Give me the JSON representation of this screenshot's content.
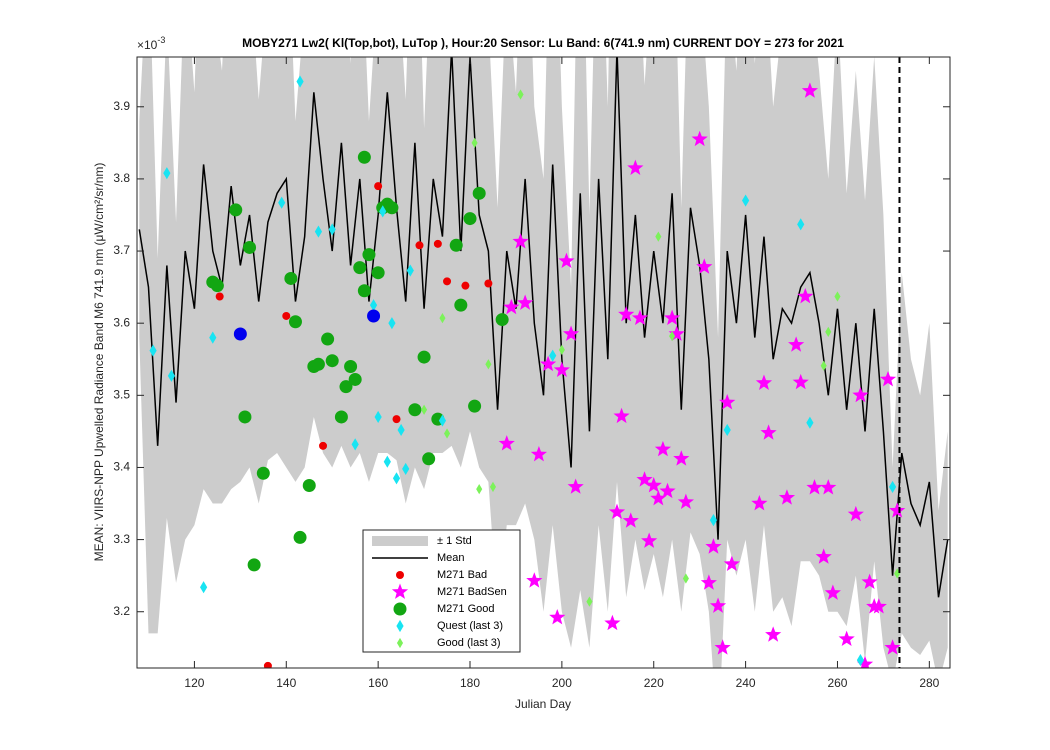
{
  "chart_data": {
    "type": "scatter",
    "title": "MOBY271   Lw2( Kl(Top,bot), LuTop ),   Hour:20 Sensor: Lu Band: 6(741.9 nm)   CURRENT DOY = 273 for 2021",
    "multiplier": {
      "base": "×10",
      "exponent": "-3"
    },
    "xlabel": "Julian Day",
    "ylabel": "MEAN: VIIRS-NPP Upwelled Radiance Band M6 741.9 nm (μW/cm²/sr/nm)",
    "xlim": [
      107.5,
      284.5
    ],
    "ylim": [
      3.122,
      3.969
    ],
    "xticks": [
      120,
      140,
      160,
      180,
      200,
      220,
      240,
      260,
      280
    ],
    "yticks": [
      3.2,
      3.3,
      3.4,
      3.5,
      3.6,
      3.7,
      3.8,
      3.9
    ],
    "doy_line": 273.5,
    "series": [
      {
        "name": "Mean",
        "color": "#000000",
        "std_name": "± 1 Std",
        "std_color": "#cccccc",
        "x": [
          108,
          110,
          112,
          114,
          116,
          118,
          120,
          122,
          124,
          126,
          128,
          130,
          132,
          134,
          136,
          138,
          140,
          142,
          144,
          146,
          148,
          150,
          152,
          154,
          156,
          158,
          160,
          162,
          164,
          166,
          168,
          170,
          172,
          174,
          176,
          178,
          180,
          182,
          184,
          186,
          188,
          190,
          192,
          194,
          196,
          198,
          200,
          202,
          204,
          206,
          208,
          210,
          212,
          214,
          216,
          218,
          220,
          222,
          224,
          226,
          228,
          230,
          232,
          234,
          236,
          238,
          240,
          242,
          244,
          246,
          248,
          250,
          252,
          254,
          256,
          258,
          260,
          262,
          264,
          266,
          268,
          270,
          272,
          274,
          276,
          278,
          280,
          282,
          284
        ],
        "values": [
          3.73,
          3.65,
          3.43,
          3.68,
          3.49,
          3.7,
          3.62,
          3.82,
          3.7,
          3.65,
          3.79,
          3.68,
          3.75,
          3.63,
          3.74,
          3.78,
          3.8,
          3.63,
          3.72,
          3.92,
          3.8,
          3.7,
          3.85,
          3.68,
          3.8,
          3.63,
          3.75,
          3.92,
          3.76,
          3.63,
          3.85,
          3.62,
          3.8,
          3.72,
          3.98,
          3.7,
          3.97,
          3.75,
          3.7,
          3.48,
          3.7,
          3.62,
          3.8,
          3.6,
          3.5,
          3.82,
          3.55,
          3.4,
          3.78,
          3.45,
          3.8,
          3.55,
          3.98,
          3.6,
          3.75,
          3.58,
          3.7,
          3.6,
          3.78,
          3.48,
          3.76,
          3.68,
          3.55,
          3.3,
          3.7,
          3.6,
          3.75,
          3.58,
          3.72,
          3.55,
          3.62,
          3.6,
          3.65,
          3.67,
          3.6,
          3.5,
          3.62,
          3.48,
          3.6,
          3.45,
          3.62,
          3.45,
          3.25,
          3.42,
          3.35,
          3.32,
          3.38,
          3.22,
          3.3
        ],
        "std": [
          0.15,
          0.48,
          0.26,
          0.35,
          0.25,
          0.4,
          0.3,
          0.45,
          0.35,
          0.3,
          0.42,
          0.3,
          0.35,
          0.28,
          0.33,
          0.36,
          0.4,
          0.25,
          0.32,
          0.45,
          0.38,
          0.3,
          0.42,
          0.28,
          0.38,
          0.25,
          0.33,
          0.5,
          0.35,
          0.28,
          0.45,
          0.25,
          0.38,
          0.3,
          0.55,
          0.3,
          0.52,
          0.35,
          0.32,
          0.28,
          0.38,
          0.3,
          0.45,
          0.3,
          0.3,
          0.5,
          0.35,
          0.25,
          0.55,
          0.3,
          0.48,
          0.35,
          0.6,
          0.38,
          0.45,
          0.35,
          0.42,
          0.38,
          0.48,
          0.28,
          0.45,
          0.4,
          0.35,
          0.28,
          0.4,
          0.35,
          0.45,
          0.38,
          0.4,
          0.35,
          0.4,
          0.42,
          0.38,
          0.4,
          0.35,
          0.3,
          0.42,
          0.3,
          0.35,
          0.32,
          0.35,
          0.3,
          0.15,
          0.25,
          0.2,
          0.18,
          0.22,
          0.12,
          0.15
        ]
      },
      {
        "name": "M271 Bad",
        "color": "#ee0000",
        "marker": "o",
        "x": [
          125.5,
          140,
          148,
          160,
          164,
          169,
          173,
          175,
          179,
          184,
          136
        ],
        "values": [
          3.637,
          3.61,
          3.43,
          3.79,
          3.467,
          3.708,
          3.71,
          3.658,
          3.652,
          3.655,
          3.125
        ]
      },
      {
        "name": "M271 BadSen",
        "color": "#ff00ff",
        "marker": "p",
        "x": [
          188,
          189,
          191,
          192,
          194,
          195,
          197,
          199,
          200,
          201,
          202,
          203,
          211,
          212,
          213,
          214,
          215,
          216,
          217,
          218,
          219,
          220,
          221,
          222,
          223,
          224,
          225,
          226,
          227,
          230,
          231,
          232,
          233,
          234,
          235,
          236,
          237,
          243,
          244,
          245,
          246,
          249,
          251,
          252,
          253,
          254,
          255,
          257,
          258,
          259,
          262,
          264,
          265,
          267,
          268,
          269,
          271,
          272,
          273,
          266
        ],
        "values": [
          3.433,
          3.622,
          3.713,
          3.628,
          3.243,
          3.418,
          3.543,
          3.192,
          3.535,
          3.686,
          3.585,
          3.373,
          3.184,
          3.338,
          3.471,
          3.612,
          3.326,
          3.815,
          3.607,
          3.383,
          3.298,
          3.375,
          3.357,
          3.425,
          3.367,
          3.607,
          3.585,
          3.412,
          3.352,
          3.855,
          3.678,
          3.24,
          3.29,
          3.208,
          3.15,
          3.49,
          3.266,
          3.35,
          3.517,
          3.448,
          3.168,
          3.358,
          3.57,
          3.518,
          3.637,
          3.922,
          3.372,
          3.276,
          3.372,
          3.226,
          3.162,
          3.335,
          3.5,
          3.241,
          3.207,
          3.207,
          3.522,
          3.15,
          3.34,
          3.127
        ]
      },
      {
        "name": "M271 Good",
        "color": "#12a612",
        "marker": "o",
        "x": [
          124,
          125,
          129,
          131,
          132,
          133,
          135,
          141,
          142,
          143,
          145,
          146,
          147,
          149,
          150,
          152,
          153,
          154,
          155,
          156,
          157,
          158,
          160,
          161,
          162,
          163,
          168,
          170,
          171,
          173,
          177,
          178,
          180,
          181,
          182,
          187,
          157
        ],
        "values": [
          3.657,
          3.652,
          3.757,
          3.47,
          3.705,
          3.265,
          3.392,
          3.662,
          3.602,
          3.303,
          3.375,
          3.54,
          3.543,
          3.578,
          3.548,
          3.47,
          3.512,
          3.54,
          3.522,
          3.677,
          3.83,
          3.695,
          3.67,
          3.76,
          3.765,
          3.76,
          3.48,
          3.553,
          3.412,
          3.467,
          3.708,
          3.625,
          3.745,
          3.485,
          3.78,
          3.605,
          3.645
        ]
      },
      {
        "name": "Quest (last 3)",
        "color": "#18e4f2",
        "marker": "d",
        "x": [
          111,
          114,
          115,
          122,
          124,
          139,
          143,
          147,
          150,
          155,
          159,
          160,
          161,
          162,
          163,
          164,
          165,
          166,
          167,
          174,
          198,
          233,
          236,
          240,
          252,
          254,
          265,
          272
        ],
        "values": [
          3.562,
          3.808,
          3.527,
          3.234,
          3.58,
          3.767,
          3.935,
          3.727,
          3.73,
          3.432,
          3.625,
          3.47,
          3.755,
          3.408,
          3.6,
          3.385,
          3.452,
          3.398,
          3.673,
          3.465,
          3.555,
          3.327,
          3.452,
          3.77,
          3.737,
          3.462,
          3.133,
          3.373
        ]
      },
      {
        "name": "Good (last 3)",
        "color": "#7cf25a",
        "marker": "d",
        "x": [
          170,
          174,
          175,
          181,
          182,
          184,
          185,
          191,
          200,
          206,
          221,
          224,
          227,
          257,
          258,
          260,
          273
        ],
        "values": [
          3.48,
          3.607,
          3.447,
          3.85,
          3.37,
          3.543,
          3.373,
          3.917,
          3.563,
          3.214,
          3.72,
          3.582,
          3.246,
          3.541,
          3.588,
          3.637,
          3.253
        ]
      },
      {
        "color": "#0000ee",
        "marker": "o",
        "x": [
          130,
          159
        ],
        "values": [
          3.585,
          3.61
        ]
      }
    ]
  }
}
